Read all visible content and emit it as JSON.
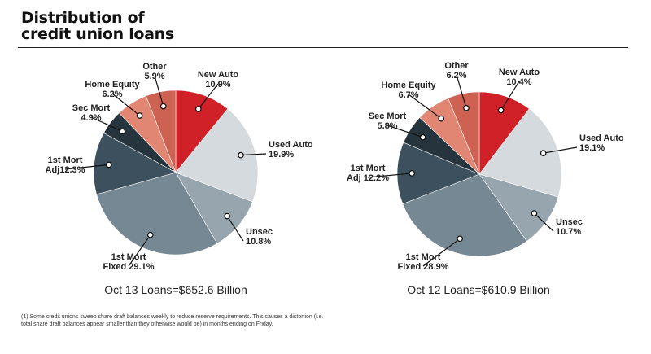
{
  "header": {
    "title_line1": "Distribution of",
    "title_line2": "credit union loans"
  },
  "colors": {
    "new_auto": "#cf2127",
    "used_auto": "#d5dade",
    "unsec": "#97a5ae",
    "first_mort_fixed": "#768893",
    "first_mort_adj": "#3c505e",
    "sec_mort": "#26343e",
    "home_equity": "#e18672",
    "other": "#cd6152"
  },
  "chart_data": [
    {
      "type": "pie",
      "title": "Oct 13 Loans=$652.6 Billion",
      "slices": [
        {
          "key": "new_auto",
          "label": "New Auto",
          "display": "10.9%",
          "value": 10.9
        },
        {
          "key": "used_auto",
          "label": "Used Auto",
          "display": "19.9%",
          "value": 19.9
        },
        {
          "key": "unsec",
          "label": "Unsec",
          "display": "10.8%",
          "value": 10.8
        },
        {
          "key": "first_mort_fixed",
          "label": "1st Mort",
          "display": "Fixed 29.1%",
          "value": 29.1
        },
        {
          "key": "first_mort_adj",
          "label": "1st Mort",
          "display": "Adj12.3%",
          "value": 12.3
        },
        {
          "key": "sec_mort",
          "label": "Sec Mort",
          "display": "4.9%",
          "value": 4.9
        },
        {
          "key": "home_equity",
          "label": "Home Equity",
          "display": "6.2%",
          "value": 6.2
        },
        {
          "key": "other",
          "label": "Other",
          "display": "5.9%",
          "value": 5.9
        }
      ]
    },
    {
      "type": "pie",
      "title": "Oct 12 Loans=$610.9 Billion",
      "slices": [
        {
          "key": "new_auto",
          "label": "New Auto",
          "display": "10.4%",
          "value": 10.4
        },
        {
          "key": "used_auto",
          "label": "Used Auto",
          "display": "19.1%",
          "value": 19.1
        },
        {
          "key": "unsec",
          "label": "Unsec",
          "display": "10.7%",
          "value": 10.7
        },
        {
          "key": "first_mort_fixed",
          "label": "1st Mort",
          "display": "Fixed 28.9%",
          "value": 28.9
        },
        {
          "key": "first_mort_adj",
          "label": "1st Mort",
          "display": "Adj 12.2%",
          "value": 12.2
        },
        {
          "key": "sec_mort",
          "label": "Sec Mort",
          "display": "5.8%",
          "value": 5.8
        },
        {
          "key": "home_equity",
          "label": "Home Equity",
          "display": "6.7%",
          "value": 6.7
        },
        {
          "key": "other",
          "label": "Other",
          "display": "6.2%",
          "value": 6.2
        }
      ]
    }
  ],
  "footnote": "(1) Some credit unions sweep share draft balances weekly to reduce reserve requirements. This causes a distortion (i.e. total share draft balances appear smaller than they otherwise would be) in months ending on Friday."
}
